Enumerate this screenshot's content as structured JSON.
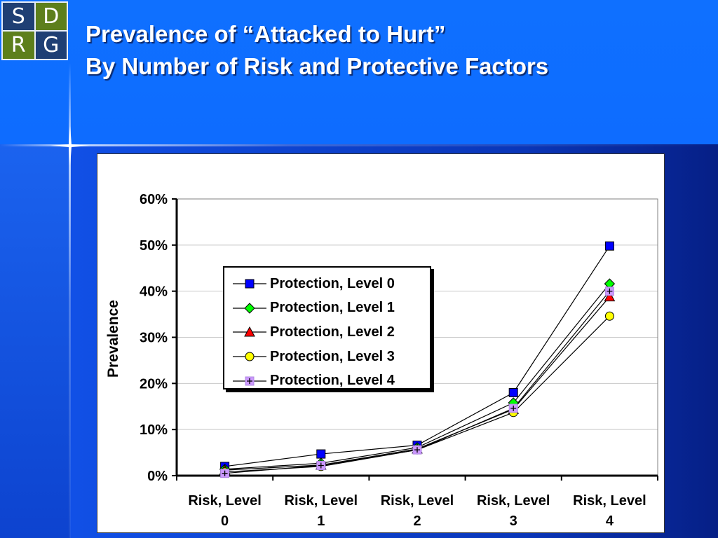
{
  "logo": {
    "letters": [
      "S",
      "D",
      "R",
      "G"
    ]
  },
  "title": {
    "line1": "Prevalence of “Attacked to Hurt”",
    "line2": "By Number of Risk and Protective Factors"
  },
  "colors": {
    "background": "#0e6cff",
    "logo_blue": "#1f3f74",
    "logo_green": "#5d7f1c"
  },
  "chart_data": {
    "type": "line",
    "categories": [
      [
        "Risk, Level",
        "0"
      ],
      [
        "Risk, Level",
        "1"
      ],
      [
        "Risk, Level",
        "2"
      ],
      [
        "Risk, Level",
        "3"
      ],
      [
        "Risk, Level",
        "4"
      ]
    ],
    "ylabel": "Prevalence",
    "ylim": [
      0,
      60
    ],
    "yticks": [
      "0%",
      "10%",
      "20%",
      "30%",
      "40%",
      "50%",
      "60%"
    ],
    "grid": "horizontal",
    "legend_position": "left-center",
    "series": [
      {
        "name": "Protection, Level 0",
        "values": [
          2.0,
          4.7,
          6.6,
          18.0,
          49.8
        ],
        "marker": "square",
        "color": "#0000ff"
      },
      {
        "name": "Protection, Level 1",
        "values": [
          1.4,
          2.7,
          6.1,
          15.8,
          41.6
        ],
        "marker": "diamond",
        "color": "#00ff00"
      },
      {
        "name": "Protection, Level 2",
        "values": [
          1.2,
          2.3,
          5.8,
          14.4,
          38.8
        ],
        "marker": "triangle",
        "color": "#ff0000"
      },
      {
        "name": "Protection, Level 3",
        "values": [
          0.8,
          2.0,
          5.6,
          13.7,
          34.6
        ],
        "marker": "circle",
        "color": "#ffff00"
      },
      {
        "name": "Protection, Level 4",
        "values": [
          0.5,
          2.2,
          5.6,
          14.6,
          40.0
        ],
        "marker": "plus-square",
        "color": "#cc99ff"
      }
    ]
  }
}
